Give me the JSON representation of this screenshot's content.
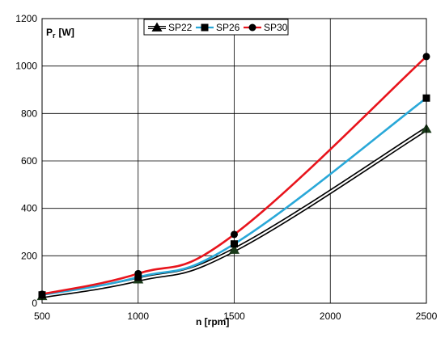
{
  "chart_data": {
    "type": "line",
    "ylabel_main": "P",
    "ylabel_sub": "r",
    "ylabel_unit": "[W]",
    "xlabel": "n [rpm]",
    "x": [
      500,
      1000,
      1500,
      2500
    ],
    "xlim": [
      500,
      2500
    ],
    "ylim": [
      0,
      1200
    ],
    "xticks": [
      "500",
      "1000",
      "1500",
      "2000",
      "2500"
    ],
    "yticks": [
      "0",
      "200",
      "400",
      "600",
      "800",
      "1000",
      "1200"
    ],
    "grid": true,
    "legend_position": "top-center",
    "series": [
      {
        "name": "SP22",
        "values": [
          30,
          100,
          225,
          735
        ],
        "color": "#000000",
        "marker": "triangle"
      },
      {
        "name": "SP26",
        "values": [
          35,
          110,
          250,
          865
        ],
        "color": "#29a8d8",
        "marker": "square"
      },
      {
        "name": "SP30",
        "values": [
          38,
          125,
          290,
          1040
        ],
        "color": "#e8141c",
        "marker": "circle"
      }
    ]
  }
}
